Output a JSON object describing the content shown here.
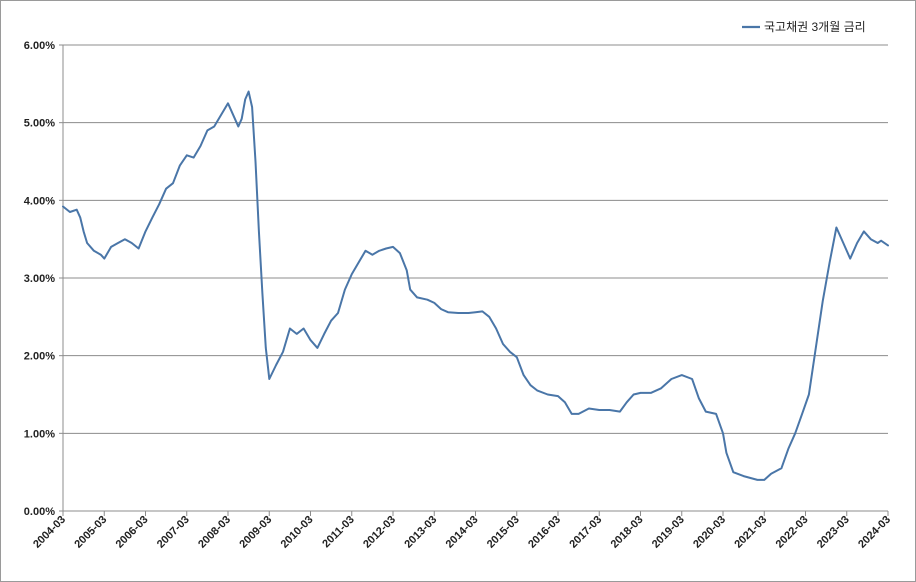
{
  "chart_data": {
    "type": "line",
    "title": "",
    "xlabel": "",
    "ylabel": "",
    "ylim": [
      0,
      6
    ],
    "y_tick_values": [
      0,
      1,
      2,
      3,
      4,
      5,
      6
    ],
    "y_tick_labels": [
      "0.00%",
      "1.00%",
      "2.00%",
      "3.00%",
      "4.00%",
      "5.00%",
      "6.00%"
    ],
    "x_tick_labels": [
      "2004-03",
      "2005-03",
      "2006-03",
      "2007-03",
      "2008-03",
      "2009-03",
      "2010-03",
      "2011-03",
      "2012-03",
      "2013-03",
      "2014-03",
      "2015-03",
      "2016-03",
      "2017-03",
      "2018-03",
      "2019-03",
      "2020-03",
      "2021-03",
      "2022-03",
      "2023-03",
      "2024-03"
    ],
    "grid": "horizontal",
    "legend_position": "top-right",
    "series": [
      {
        "name": "국고채권 3개월 금리",
        "color": "#4a76a8",
        "points": [
          [
            "2004-03",
            3.92
          ],
          [
            "2004-05",
            3.85
          ],
          [
            "2004-07",
            3.88
          ],
          [
            "2004-08",
            3.78
          ],
          [
            "2004-09",
            3.6
          ],
          [
            "2004-10",
            3.45
          ],
          [
            "2004-12",
            3.35
          ],
          [
            "2005-02",
            3.3
          ],
          [
            "2005-03",
            3.25
          ],
          [
            "2005-05",
            3.4
          ],
          [
            "2005-07",
            3.45
          ],
          [
            "2005-09",
            3.5
          ],
          [
            "2005-11",
            3.45
          ],
          [
            "2006-01",
            3.38
          ],
          [
            "2006-03",
            3.6
          ],
          [
            "2006-05",
            3.78
          ],
          [
            "2006-07",
            3.95
          ],
          [
            "2006-09",
            4.15
          ],
          [
            "2006-11",
            4.22
          ],
          [
            "2007-01",
            4.45
          ],
          [
            "2007-03",
            4.58
          ],
          [
            "2007-05",
            4.55
          ],
          [
            "2007-07",
            4.7
          ],
          [
            "2007-09",
            4.9
          ],
          [
            "2007-11",
            4.95
          ],
          [
            "2008-01",
            5.1
          ],
          [
            "2008-03",
            5.25
          ],
          [
            "2008-05",
            5.05
          ],
          [
            "2008-06",
            4.95
          ],
          [
            "2008-07",
            5.05
          ],
          [
            "2008-08",
            5.3
          ],
          [
            "2008-09",
            5.4
          ],
          [
            "2008-10",
            5.2
          ],
          [
            "2008-11",
            4.5
          ],
          [
            "2008-12",
            3.6
          ],
          [
            "2009-01",
            2.8
          ],
          [
            "2009-02",
            2.1
          ],
          [
            "2009-03",
            1.7
          ],
          [
            "2009-05",
            1.88
          ],
          [
            "2009-07",
            2.05
          ],
          [
            "2009-09",
            2.35
          ],
          [
            "2009-11",
            2.28
          ],
          [
            "2010-01",
            2.35
          ],
          [
            "2010-03",
            2.2
          ],
          [
            "2010-05",
            2.1
          ],
          [
            "2010-07",
            2.28
          ],
          [
            "2010-09",
            2.45
          ],
          [
            "2010-11",
            2.55
          ],
          [
            "2011-01",
            2.85
          ],
          [
            "2011-03",
            3.05
          ],
          [
            "2011-05",
            3.2
          ],
          [
            "2011-07",
            3.35
          ],
          [
            "2011-09",
            3.3
          ],
          [
            "2011-11",
            3.35
          ],
          [
            "2012-01",
            3.38
          ],
          [
            "2012-03",
            3.4
          ],
          [
            "2012-05",
            3.32
          ],
          [
            "2012-07",
            3.1
          ],
          [
            "2012-08",
            2.85
          ],
          [
            "2012-10",
            2.75
          ],
          [
            "2013-01",
            2.72
          ],
          [
            "2013-03",
            2.68
          ],
          [
            "2013-05",
            2.6
          ],
          [
            "2013-07",
            2.56
          ],
          [
            "2013-10",
            2.55
          ],
          [
            "2014-01",
            2.55
          ],
          [
            "2014-03",
            2.56
          ],
          [
            "2014-05",
            2.57
          ],
          [
            "2014-07",
            2.5
          ],
          [
            "2014-09",
            2.35
          ],
          [
            "2014-11",
            2.15
          ],
          [
            "2015-01",
            2.05
          ],
          [
            "2015-03",
            1.98
          ],
          [
            "2015-05",
            1.75
          ],
          [
            "2015-07",
            1.62
          ],
          [
            "2015-09",
            1.55
          ],
          [
            "2015-12",
            1.5
          ],
          [
            "2016-03",
            1.48
          ],
          [
            "2016-05",
            1.4
          ],
          [
            "2016-07",
            1.25
          ],
          [
            "2016-09",
            1.25
          ],
          [
            "2016-12",
            1.32
          ],
          [
            "2017-03",
            1.3
          ],
          [
            "2017-06",
            1.3
          ],
          [
            "2017-09",
            1.28
          ],
          [
            "2017-11",
            1.4
          ],
          [
            "2018-01",
            1.5
          ],
          [
            "2018-03",
            1.52
          ],
          [
            "2018-06",
            1.52
          ],
          [
            "2018-09",
            1.58
          ],
          [
            "2018-12",
            1.7
          ],
          [
            "2019-03",
            1.75
          ],
          [
            "2019-06",
            1.7
          ],
          [
            "2019-08",
            1.45
          ],
          [
            "2019-10",
            1.28
          ],
          [
            "2020-01",
            1.25
          ],
          [
            "2020-03",
            1.0
          ],
          [
            "2020-04",
            0.75
          ],
          [
            "2020-06",
            0.5
          ],
          [
            "2020-09",
            0.45
          ],
          [
            "2021-01",
            0.4
          ],
          [
            "2021-03",
            0.4
          ],
          [
            "2021-05",
            0.48
          ],
          [
            "2021-08",
            0.55
          ],
          [
            "2021-10",
            0.8
          ],
          [
            "2021-12",
            1.0
          ],
          [
            "2022-02",
            1.25
          ],
          [
            "2022-04",
            1.5
          ],
          [
            "2022-06",
            2.1
          ],
          [
            "2022-08",
            2.7
          ],
          [
            "2022-10",
            3.2
          ],
          [
            "2022-12",
            3.65
          ],
          [
            "2023-02",
            3.45
          ],
          [
            "2023-04",
            3.25
          ],
          [
            "2023-06",
            3.45
          ],
          [
            "2023-08",
            3.6
          ],
          [
            "2023-10",
            3.5
          ],
          [
            "2023-12",
            3.45
          ],
          [
            "2024-01",
            3.48
          ],
          [
            "2024-03",
            3.42
          ]
        ]
      }
    ]
  }
}
